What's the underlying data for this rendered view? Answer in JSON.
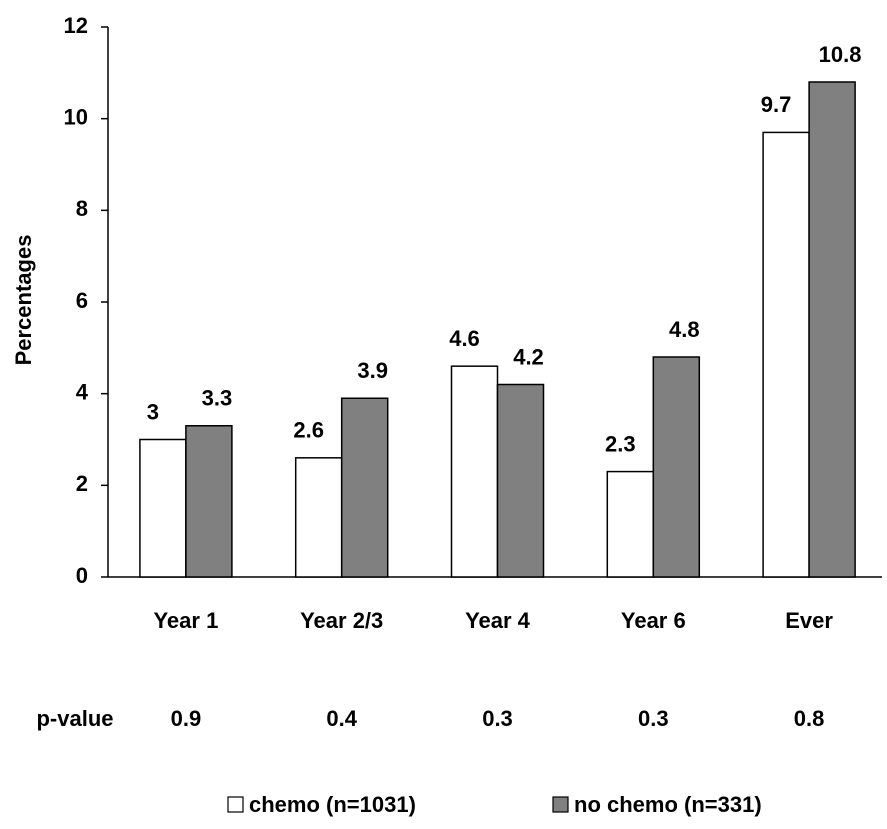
{
  "chart_data": {
    "type": "bar",
    "y_label": "Percentages",
    "categories": [
      "Year 1",
      "Year 2/3",
      "Year 4",
      "Year 6",
      "Ever"
    ],
    "series": [
      {
        "name": "chemo (n=1031)",
        "color": "#ffffff",
        "values": [
          3,
          2.6,
          4.6,
          2.3,
          9.7
        ]
      },
      {
        "name": "no chemo (n=331)",
        "color": "#808080",
        "values": [
          3.3,
          3.9,
          4.2,
          4.8,
          10.8
        ]
      }
    ],
    "p_value_label": "p-value",
    "p_values": [
      0.9,
      0.4,
      0.3,
      0.3,
      0.8
    ],
    "ylim": [
      0,
      12
    ],
    "yticks": [
      0,
      2,
      4,
      6,
      8,
      10,
      12
    ],
    "grid": false
  }
}
